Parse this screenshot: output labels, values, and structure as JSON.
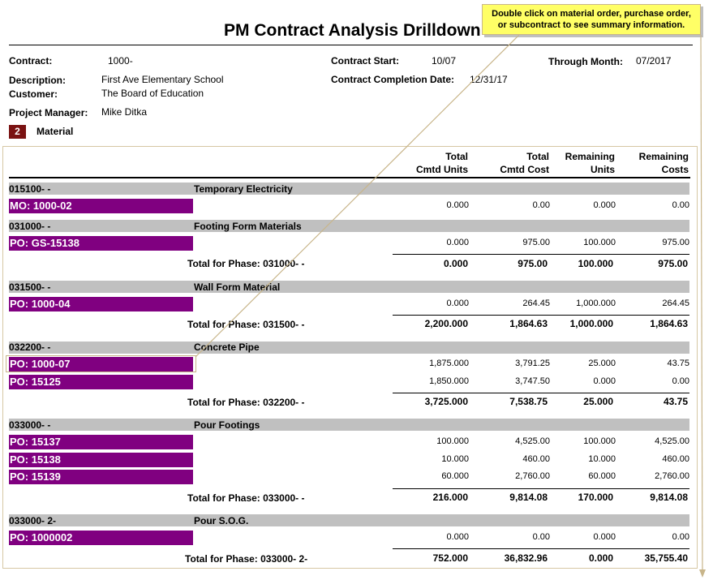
{
  "title": "PM Contract Analysis Drilldown",
  "callout": {
    "line1": "Double click on material order, purchase order,",
    "line2": "or subcontract to see summary information."
  },
  "header": {
    "contract_label": "Contract:",
    "contract_value": "1000-",
    "description_label": "Description:",
    "description_value": "First Ave Elementary School",
    "customer_label": "Customer:",
    "customer_value": "The Board of Education",
    "pm_label": "Project Manager:",
    "pm_value": "Mike Ditka",
    "contract_start_label": "Contract Start:",
    "contract_start_value": "10/07",
    "completion_label": "Contract Completion Date:",
    "completion_value": "12/31/17",
    "through_label": "Through Month:",
    "through_value": "07/2017"
  },
  "material": {
    "badge": "2",
    "label": "Material"
  },
  "columns": [
    {
      "line1": "Total",
      "line2": "Cmtd Units"
    },
    {
      "line1": "Total",
      "line2": "Cmtd Cost"
    },
    {
      "line1": "Remaining",
      "line2": "Units"
    },
    {
      "line1": "Remaining",
      "line2": "Costs"
    }
  ],
  "phases": [
    {
      "code": "015100-  -",
      "desc": "Temporary Electricity",
      "orders": [
        {
          "label": "MO: 1000-02",
          "values": [
            "0.000",
            "0.00",
            "0.000",
            "0.00"
          ]
        }
      ]
    },
    {
      "code": "031000-  -",
      "desc": "Footing Form Materials",
      "orders": [
        {
          "label": "PO: GS-15138",
          "values": [
            "0.000",
            "975.00",
            "100.000",
            "975.00"
          ]
        }
      ],
      "total_label": "Total for Phase: 031000-  -",
      "totals": [
        "0.000",
        "975.00",
        "100.000",
        "975.00"
      ]
    },
    {
      "code": "031500-  -",
      "desc": "Wall Form Material",
      "orders": [
        {
          "label": "PO: 1000-04",
          "values": [
            "0.000",
            "264.45",
            "1,000.000",
            "264.45"
          ]
        }
      ],
      "total_label": "Total for Phase: 031500-  -",
      "totals": [
        "2,200.000",
        "1,864.63",
        "1,000.000",
        "1,864.63"
      ]
    },
    {
      "code": "032200-  -",
      "desc": "Concrete Pipe",
      "orders": [
        {
          "label": "PO: 1000-07",
          "values": [
            "1,875.000",
            "3,791.25",
            "25.000",
            "43.75"
          ]
        },
        {
          "label": "PO: 15125",
          "values": [
            "1,850.000",
            "3,747.50",
            "0.000",
            "0.00"
          ]
        }
      ],
      "total_label": "Total for Phase: 032200-  -",
      "totals": [
        "3,725.000",
        "7,538.75",
        "25.000",
        "43.75"
      ]
    },
    {
      "code": "033000-  -",
      "desc": "Pour Footings",
      "orders": [
        {
          "label": "PO: 15137",
          "values": [
            "100.000",
            "4,525.00",
            "100.000",
            "4,525.00"
          ]
        },
        {
          "label": "PO: 15138",
          "values": [
            "10.000",
            "460.00",
            "10.000",
            "460.00"
          ]
        },
        {
          "label": "PO: 15139",
          "values": [
            "60.000",
            "2,760.00",
            "60.000",
            "2,760.00"
          ]
        }
      ],
      "total_label": "Total for Phase: 033000-  -",
      "totals": [
        "216.000",
        "9,814.08",
        "170.000",
        "9,814.08"
      ]
    },
    {
      "code": "033000-  2-",
      "desc": "Pour S.O.G.",
      "orders": [
        {
          "label": "PO: 1000002",
          "values": [
            "0.000",
            "0.00",
            "0.000",
            "0.00"
          ]
        }
      ],
      "total_label": "Total for Phase: 033000-  2-",
      "totals": [
        "752.000",
        "36,832.96",
        "0.000",
        "35,755.40"
      ]
    }
  ]
}
